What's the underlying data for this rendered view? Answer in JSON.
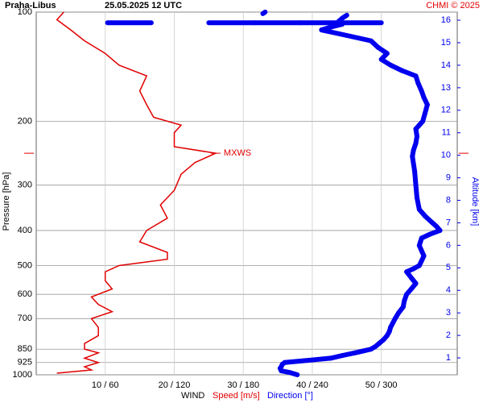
{
  "chart_data": {
    "type": "line",
    "title": "Praha-Libus",
    "subtitle": "25.05.2025 12 UTC",
    "credit": "CHMI © 2025",
    "ylabel": "Pressure [hPa]",
    "y2label": "Altitude [km]",
    "xlabel": "WIND",
    "ylim": [
      100,
      1000
    ],
    "ylog": true,
    "yticks": [
      100,
      200,
      300,
      400,
      500,
      600,
      700,
      850,
      925,
      1000
    ],
    "xlim": [
      0,
      61
    ],
    "xticks": [
      {
        "value": 10,
        "label": "10 / 60"
      },
      {
        "value": 20,
        "label": "20 / 120"
      },
      {
        "value": 30,
        "label": "30 / 180"
      },
      {
        "value": 40,
        "label": "40 / 240"
      },
      {
        "value": 50,
        "label": "50 / 300"
      }
    ],
    "x2lim": [
      0,
      366
    ],
    "y2lim": [
      0.25,
      16.36
    ],
    "y2ticks": [
      1,
      2,
      3,
      4,
      5,
      6,
      7,
      8,
      9,
      10,
      11,
      12,
      13,
      14,
      15,
      16
    ],
    "grid": true,
    "series": [
      {
        "name": "Speed [m/s]",
        "color": "#e00000",
        "axis": "x",
        "pressure": [
          990,
          970,
          950,
          925,
          900,
          870,
          850,
          820,
          780,
          740,
          700,
          670,
          640,
          610,
          580,
          550,
          520,
          500,
          480,
          460,
          430,
          400,
          370,
          340,
          310,
          280,
          260,
          245,
          235,
          215,
          205,
          195,
          180,
          165,
          150,
          140,
          130,
          120,
          112,
          105,
          100
        ],
        "values": [
          3,
          8,
          7,
          9,
          7,
          9,
          7,
          7,
          9,
          9,
          8,
          11,
          9,
          8,
          11,
          10,
          10,
          12,
          19,
          19,
          15,
          16,
          19,
          18,
          20,
          21,
          23,
          26,
          20,
          20,
          21,
          17,
          16,
          15,
          16,
          12,
          10,
          7,
          5,
          3,
          4
        ]
      },
      {
        "name": "Direction [°]",
        "color": "#0000ee",
        "axis": "x2",
        "pressure": [
          1000,
          985,
          975,
          960,
          950,
          935,
          925,
          910,
          900,
          885,
          870,
          860,
          850,
          835,
          820,
          800,
          780,
          760,
          740,
          720,
          700,
          675,
          650,
          625,
          600,
          580,
          560,
          540,
          520,
          510,
          500,
          485,
          470,
          455,
          440,
          430,
          420,
          410,
          400,
          390,
          380,
          365,
          350,
          325,
          300,
          275,
          250,
          240,
          230,
          220,
          210,
          205,
          200,
          190,
          180,
          172,
          165,
          157,
          150,
          145,
          140,
          135,
          130,
          125,
          120,
          116,
          112,
          110,
          108,
          106,
          104,
          103,
          102,
          107,
          107,
          107,
          107,
          107,
          107,
          107,
          101,
          100
        ],
        "values": [
          227,
          220,
          213,
          212,
          213,
          214,
          216,
          240,
          256,
          266,
          277,
          284,
          291,
          295,
          298,
          302,
          305,
          307,
          308,
          310,
          312,
          315,
          319,
          320,
          322,
          326,
          330,
          326,
          322,
          328,
          333,
          335,
          337,
          335,
          333,
          334,
          335,
          342,
          351,
          348,
          344,
          338,
          333,
          331,
          330,
          329,
          327,
          328,
          330,
          331,
          330,
          333,
          336,
          338,
          340,
          337,
          335,
          332,
          330,
          318,
          308,
          300,
          305,
          297,
          291,
          270,
          248,
          256,
          266,
          263,
          266,
          268,
          270,
          62,
          100,
          150,
          190,
          230,
          262,
          300,
          197,
          199
        ]
      }
    ],
    "annotations": [
      {
        "text": "MXWS",
        "pressure": 245,
        "value": 26
      }
    ]
  }
}
